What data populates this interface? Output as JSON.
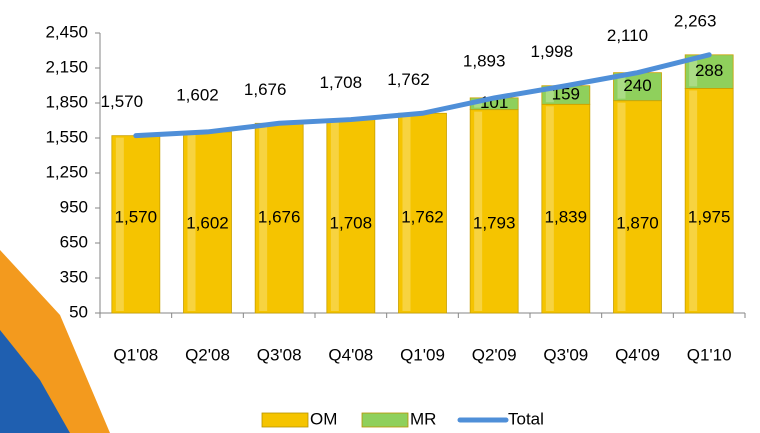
{
  "chart_data": {
    "type": "bar",
    "stacked": true,
    "categories": [
      "Q1'08",
      "Q2'08",
      "Q3'08",
      "Q4'08",
      "Q1'09",
      "Q2'09",
      "Q3'09",
      "Q4'09",
      "Q1'10"
    ],
    "series": [
      {
        "name": "OM",
        "type": "bar",
        "color": "#f5c400",
        "values": [
          1570,
          1602,
          1676,
          1708,
          1762,
          1793,
          1839,
          1870,
          1975
        ],
        "value_labels": [
          "1,570",
          "1,602",
          "1,676",
          "1,708",
          "1,762",
          "1,793",
          "1,839",
          "1,870",
          "1,975"
        ]
      },
      {
        "name": "MR",
        "type": "bar",
        "color": "#8fd05c",
        "values": [
          null,
          null,
          null,
          null,
          null,
          101,
          159,
          240,
          288
        ]
      },
      {
        "name": "Total",
        "type": "line",
        "color": "#4f8fd8",
        "values": [
          1570,
          1602,
          1676,
          1708,
          1762,
          1893,
          1998,
          2110,
          2263
        ],
        "value_labels": [
          "1,570",
          "1,602",
          "1,676",
          "1,708",
          "1,762",
          "1,893",
          "1,998",
          "2,110",
          "2,263"
        ]
      }
    ],
    "ylim": [
      50,
      2450
    ],
    "yticks": [
      50,
      350,
      650,
      950,
      {
        "value": 1250,
        "label": "1,250"
      },
      {
        "value": 1550,
        "label": "1,550"
      },
      {
        "value": 1850,
        "label": "1,850"
      },
      {
        "value": 2150,
        "label": "2,150"
      },
      {
        "value": 2450,
        "label": "2,450"
      }
    ],
    "grid": false,
    "legend": "bottom"
  }
}
